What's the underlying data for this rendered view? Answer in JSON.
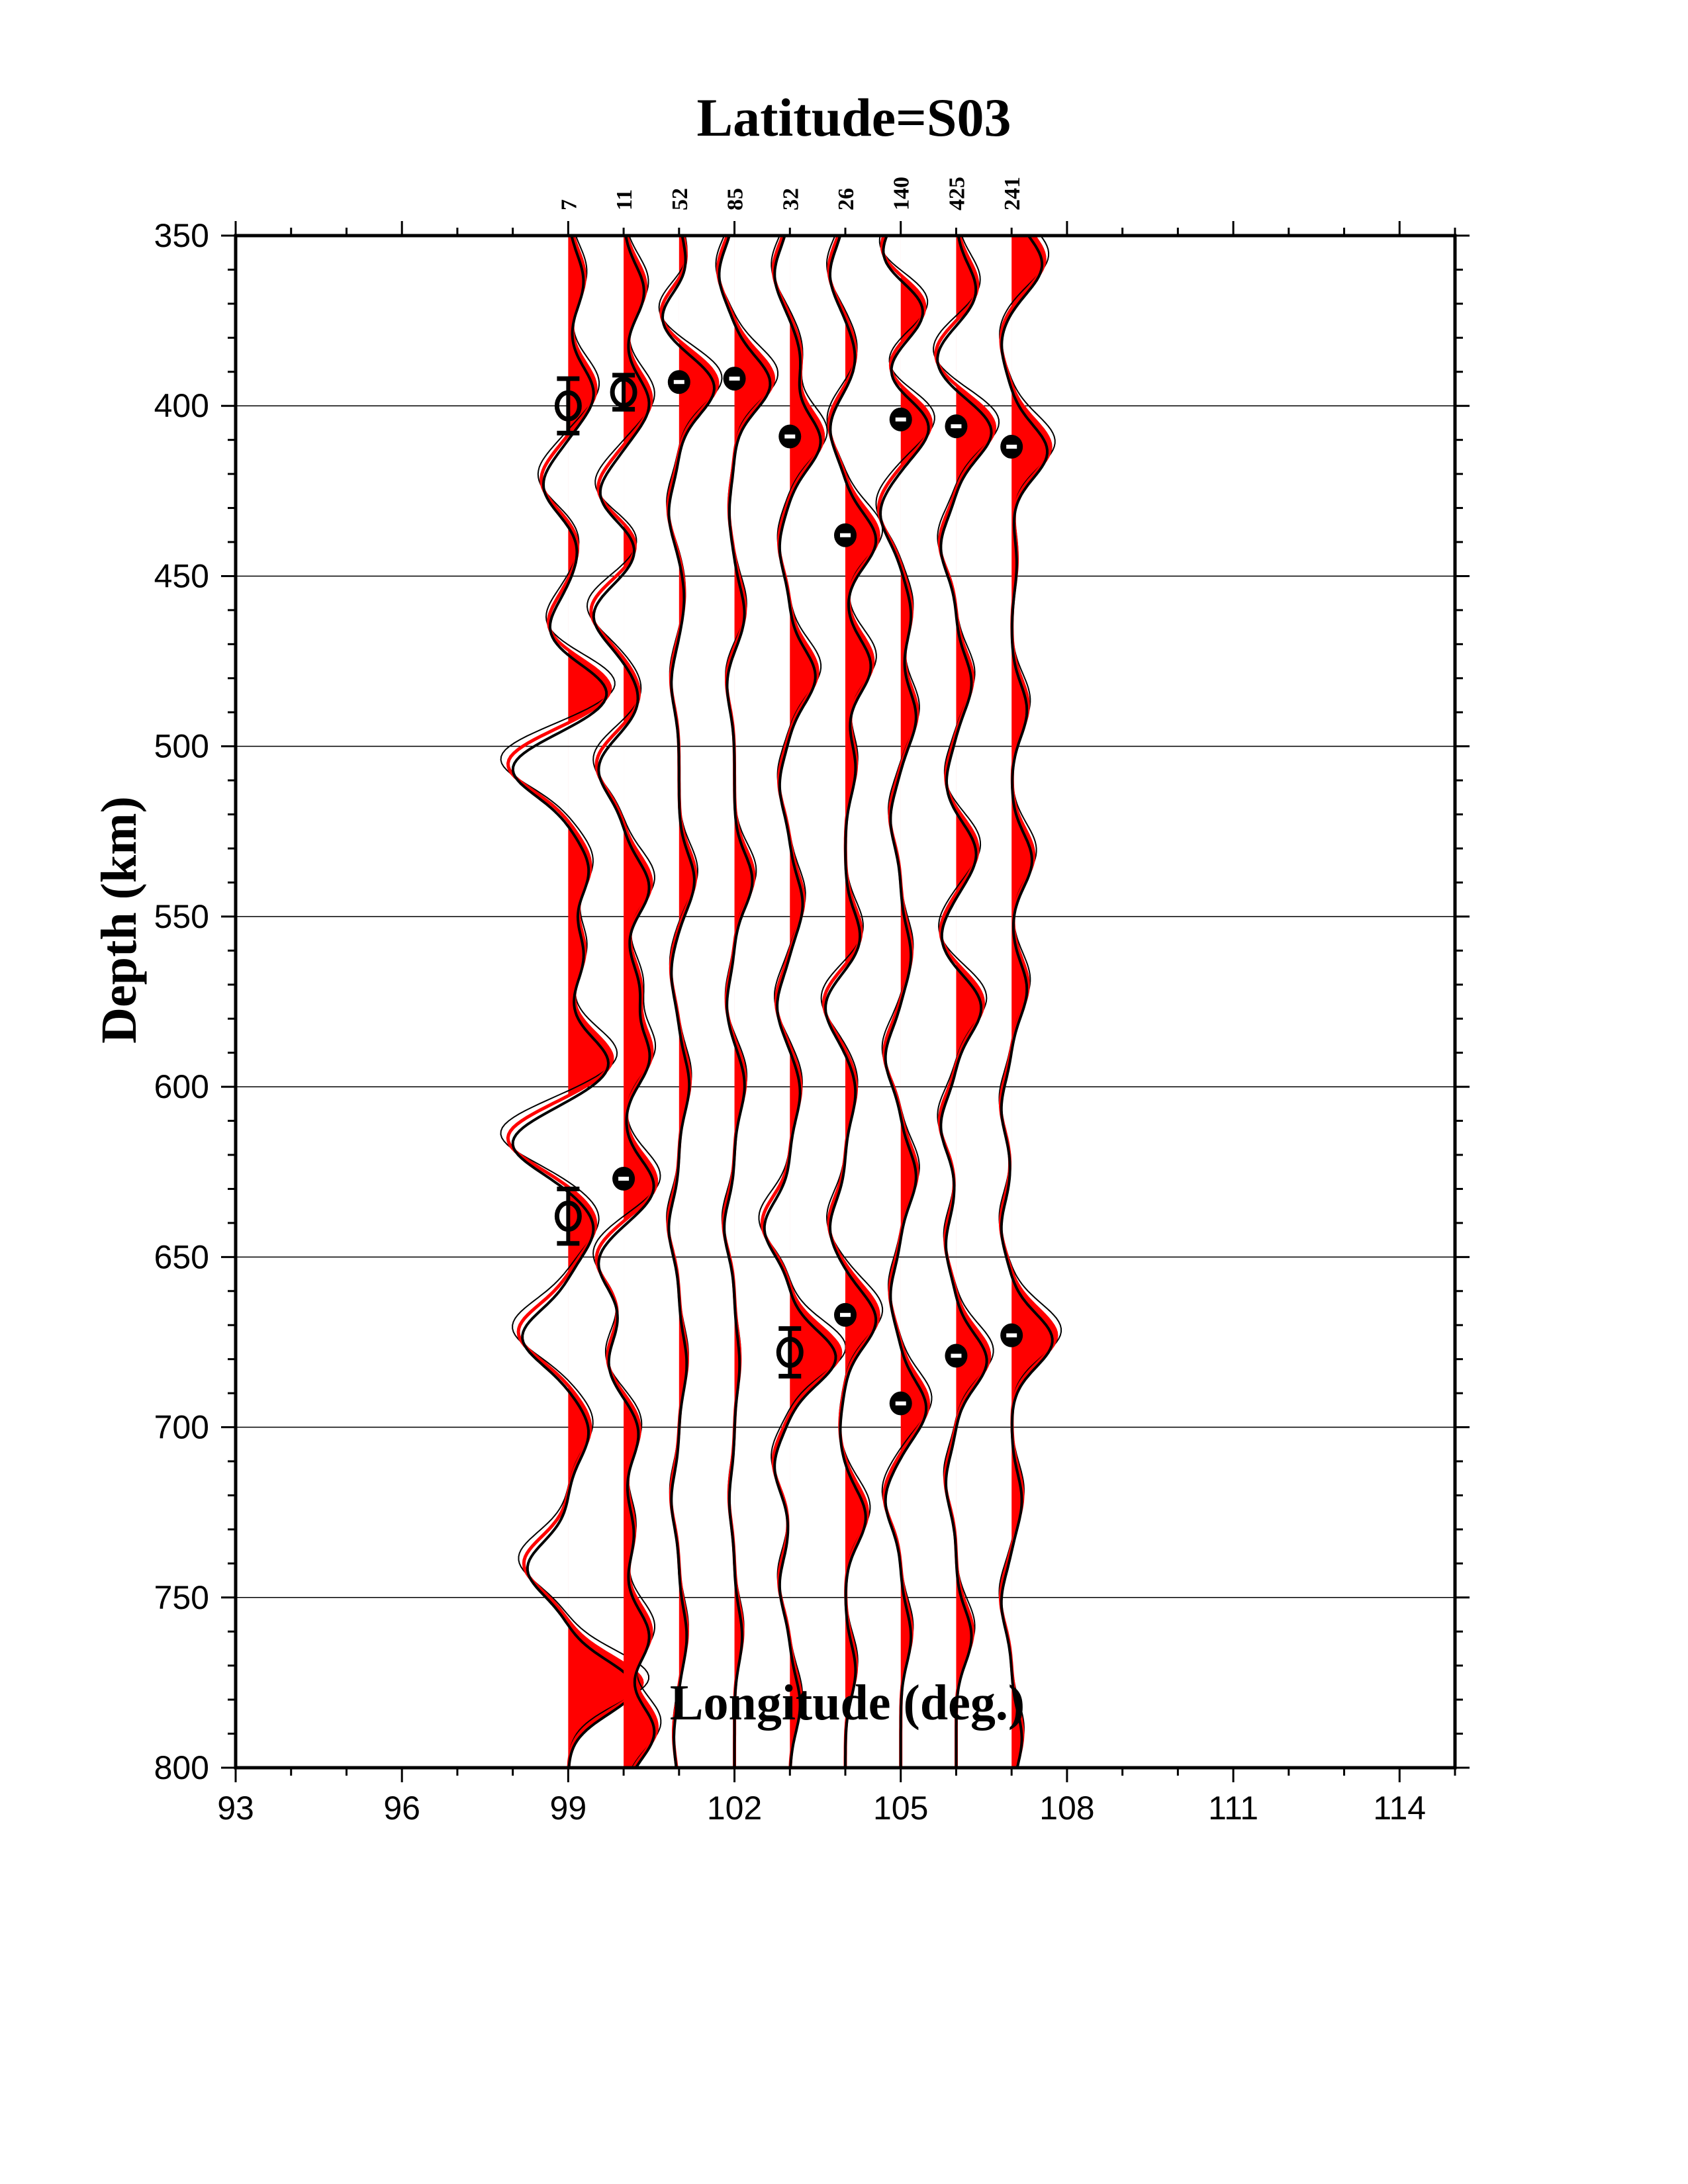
{
  "chart_data": {
    "type": "line",
    "title": "Latitude=S03",
    "xlabel": "Longitude (deg.)",
    "ylabel": "Depth (km)",
    "xlim": [
      93,
      115
    ],
    "ylim": [
      350,
      800
    ],
    "y_inverted": true,
    "grid": "horizontal",
    "x_ticks": [
      "93",
      "96",
      "99",
      "102",
      "105",
      "108",
      "111",
      "114"
    ],
    "x_tick_values": [
      93,
      96,
      99,
      102,
      105,
      108,
      111,
      114
    ],
    "y_ticks": [
      "350",
      "400",
      "450",
      "500",
      "550",
      "600",
      "650",
      "700",
      "750",
      "800"
    ],
    "y_tick_values": [
      350,
      400,
      450,
      500,
      550,
      600,
      650,
      700,
      750,
      800
    ],
    "fill_color": "#ff0000",
    "line_color": "#000000",
    "traces": [
      {
        "longitude": 99,
        "label": "7",
        "peaks": [
          [
            362,
            0.3
          ],
          [
            395,
            0.5
          ],
          [
            422,
            -0.5
          ],
          [
            440,
            0.2
          ],
          [
            465,
            -0.4
          ],
          [
            483,
            0.8
          ],
          [
            505,
            -1.1
          ],
          [
            535,
            0.4
          ],
          [
            560,
            0.3
          ],
          [
            592,
            0.8
          ],
          [
            615,
            -1.1
          ],
          [
            640,
            0.5
          ],
          [
            672,
            -0.9
          ],
          [
            700,
            0.4
          ],
          [
            740,
            -0.8
          ],
          [
            775,
            1.3
          ]
        ],
        "picks": [
          {
            "depth": 400,
            "err": 8
          },
          {
            "depth": 638,
            "err": 8
          }
        ]
      },
      {
        "longitude": 100,
        "label": "11",
        "peaks": [
          [
            365,
            0.4
          ],
          [
            398,
            0.5
          ],
          [
            425,
            -0.5
          ],
          [
            440,
            0.3
          ],
          [
            460,
            -0.6
          ],
          [
            485,
            0.3
          ],
          [
            505,
            -0.5
          ],
          [
            540,
            0.5
          ],
          [
            570,
            0.3
          ],
          [
            590,
            0.5
          ],
          [
            628,
            0.6
          ],
          [
            650,
            -0.5
          ],
          [
            680,
            -0.3
          ],
          [
            700,
            0.3
          ],
          [
            730,
            0.2
          ],
          [
            760,
            0.5
          ],
          [
            788,
            0.6
          ]
        ],
        "picks": [
          {
            "depth": 396,
            "err": 5
          },
          {
            "depth": 627,
            "err": 2
          }
        ]
      },
      {
        "longitude": 101,
        "label": "52",
        "peaks": [
          [
            360,
            0.2
          ],
          [
            372,
            -0.4
          ],
          [
            393,
            0.7
          ],
          [
            430,
            -0.2
          ],
          [
            455,
            0.1
          ],
          [
            480,
            -0.15
          ],
          [
            538,
            0.3
          ],
          [
            565,
            -0.15
          ],
          [
            598,
            0.2
          ],
          [
            640,
            -0.2
          ],
          [
            680,
            0.15
          ],
          [
            720,
            -0.15
          ],
          [
            760,
            0.15
          ],
          [
            790,
            -0.1
          ]
        ],
        "picks": [
          {
            "depth": 393,
            "err": 1
          }
        ]
      },
      {
        "longitude": 102,
        "label": "85",
        "peaks": [
          [
            360,
            -0.3
          ],
          [
            392,
            0.7
          ],
          [
            430,
            -0.1
          ],
          [
            460,
            0.2
          ],
          [
            480,
            -0.15
          ],
          [
            538,
            0.35
          ],
          [
            575,
            -0.15
          ],
          [
            598,
            0.2
          ],
          [
            640,
            -0.2
          ],
          [
            680,
            0.1
          ],
          [
            720,
            -0.1
          ],
          [
            760,
            0.15
          ]
        ],
        "picks": [
          {
            "depth": 392,
            "err": 1
          }
        ]
      },
      {
        "longitude": 103,
        "label": "32",
        "peaks": [
          [
            360,
            -0.3
          ],
          [
            385,
            0.2
          ],
          [
            409,
            0.6
          ],
          [
            440,
            -0.2
          ],
          [
            478,
            0.5
          ],
          [
            510,
            -0.2
          ],
          [
            545,
            0.25
          ],
          [
            575,
            -0.25
          ],
          [
            600,
            0.2
          ],
          [
            640,
            -0.5
          ],
          [
            678,
            0.9
          ],
          [
            710,
            -0.3
          ],
          [
            745,
            -0.2
          ],
          [
            780,
            0.2
          ]
        ],
        "picks": [
          {
            "depth": 409,
            "err": 1
          },
          {
            "depth": 678,
            "err": 7
          }
        ]
      },
      {
        "longitude": 104,
        "label": "26",
        "peaks": [
          [
            360,
            -0.3
          ],
          [
            385,
            0.2
          ],
          [
            405,
            -0.3
          ],
          [
            438,
            0.6
          ],
          [
            475,
            0.5
          ],
          [
            505,
            0.2
          ],
          [
            555,
            0.3
          ],
          [
            575,
            -0.4
          ],
          [
            600,
            0.2
          ],
          [
            640,
            -0.3
          ],
          [
            667,
            0.6
          ],
          [
            700,
            -0.1
          ],
          [
            725,
            0.4
          ],
          [
            770,
            0.2
          ]
        ],
        "picks": [
          {
            "depth": 438,
            "err": 1
          },
          {
            "depth": 667,
            "err": 1
          }
        ]
      },
      {
        "longitude": 105,
        "label": "140",
        "peaks": [
          [
            355,
            -0.4
          ],
          [
            370,
            0.5
          ],
          [
            390,
            -0.3
          ],
          [
            404,
            0.6
          ],
          [
            430,
            -0.4
          ],
          [
            460,
            0.2
          ],
          [
            490,
            0.3
          ],
          [
            520,
            -0.2
          ],
          [
            560,
            0.2
          ],
          [
            590,
            -0.3
          ],
          [
            625,
            0.3
          ],
          [
            660,
            -0.2
          ],
          [
            693,
            0.5
          ],
          [
            720,
            -0.3
          ],
          [
            760,
            0.2
          ]
        ],
        "picks": [
          {
            "depth": 404,
            "err": 1
          },
          {
            "depth": 693,
            "err": 1
          }
        ]
      },
      {
        "longitude": 106,
        "label": "425",
        "peaks": [
          [
            365,
            0.4
          ],
          [
            385,
            -0.4
          ],
          [
            406,
            0.7
          ],
          [
            440,
            -0.3
          ],
          [
            480,
            0.3
          ],
          [
            510,
            -0.2
          ],
          [
            530,
            0.4
          ],
          [
            555,
            -0.3
          ],
          [
            575,
            0.5
          ],
          [
            610,
            -0.3
          ],
          [
            645,
            -0.2
          ],
          [
            679,
            0.6
          ],
          [
            715,
            -0.2
          ],
          [
            760,
            0.3
          ]
        ],
        "picks": [
          {
            "depth": 406,
            "err": 1
          },
          {
            "depth": 679,
            "err": 1
          }
        ]
      },
      {
        "longitude": 107,
        "label": "241",
        "peaks": [
          [
            357,
            0.6
          ],
          [
            380,
            -0.2
          ],
          [
            412,
            0.7
          ],
          [
            445,
            0.1
          ],
          [
            488,
            0.3
          ],
          [
            532,
            0.4
          ],
          [
            570,
            0.3
          ],
          [
            605,
            -0.2
          ],
          [
            640,
            -0.2
          ],
          [
            673,
            0.8
          ],
          [
            720,
            0.2
          ],
          [
            750,
            -0.2
          ],
          [
            790,
            0.2
          ]
        ],
        "picks": [
          {
            "depth": 412,
            "err": 1
          },
          {
            "depth": 673,
            "err": 1
          }
        ]
      }
    ]
  }
}
